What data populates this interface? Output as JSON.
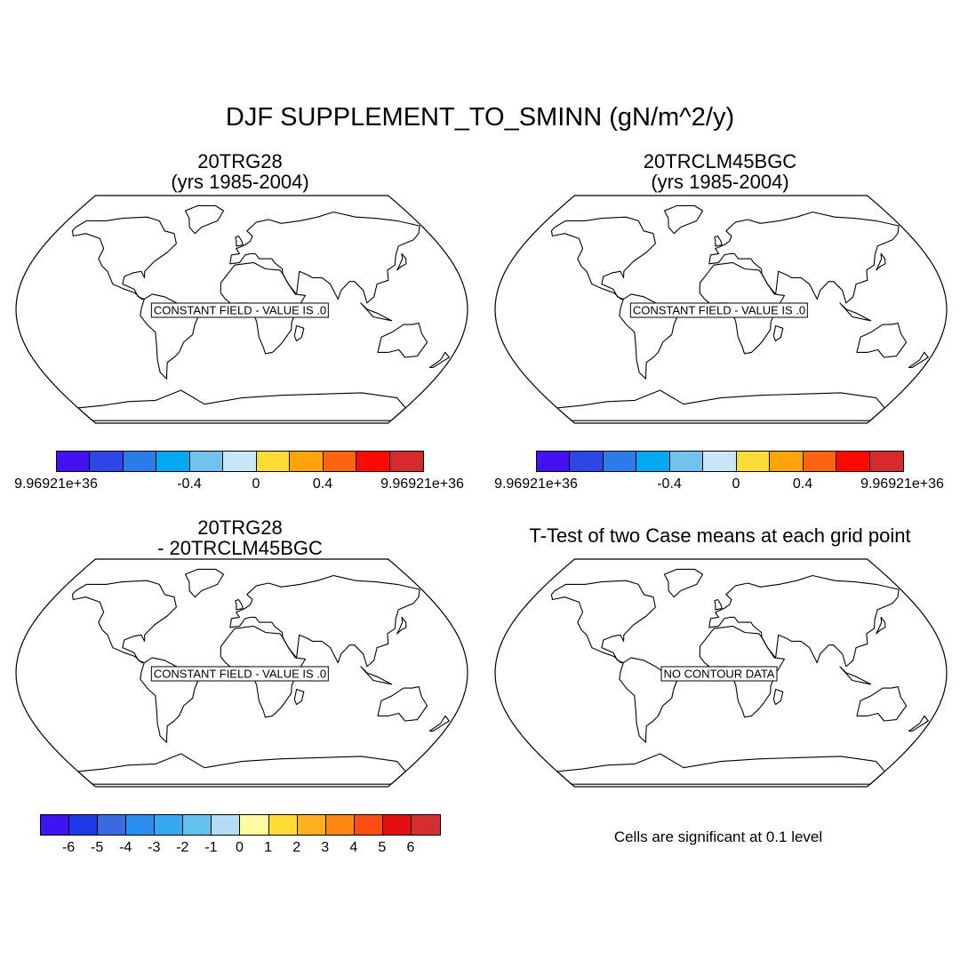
{
  "figure": {
    "title": "DJF SUPPLEMENT_TO_SMINN (gN/m^2/y)"
  },
  "panels": [
    {
      "id": "p1",
      "title_line1": "20TRG28",
      "title_line2": "(yrs 1985-2004)",
      "center_label": "CONSTANT FIELD - VALUE IS .0"
    },
    {
      "id": "p2",
      "title_line1": "20TRCLM45BGC",
      "title_line2": "(yrs 1985-2004)",
      "center_label": "CONSTANT FIELD - VALUE IS .0"
    },
    {
      "id": "p3",
      "title_line1": "20TRG28",
      "title_line2": "- 20TRCLM45BGC",
      "center_label": "CONSTANT FIELD - VALUE IS .0"
    },
    {
      "id": "p4",
      "title_line1": "T-Test of two Case means at each grid point",
      "title_line2": "",
      "center_label": "NO CONTOUR DATA"
    }
  ],
  "colorbars": {
    "case": {
      "colors": [
        "#4412f0",
        "#2d46e6",
        "#2b7be8",
        "#06a8f2",
        "#73c2ec",
        "#c8e6f8",
        "#f9dd34",
        "#fca40a",
        "#fc6410",
        "#fb0a00",
        "#d52a2a"
      ],
      "labels": [
        "9.96921e+36",
        "-0.4",
        "0",
        "0.4",
        "9.96921e+36"
      ]
    },
    "diff": {
      "colors": [
        "#3e14f2",
        "#1e3ae8",
        "#3a6ae2",
        "#2c8df0",
        "#34a9f2",
        "#63c3ef",
        "#b2ddf5",
        "#fdfaa0",
        "#fedd34",
        "#fdb01e",
        "#fc8810",
        "#fb4d10",
        "#e41010",
        "#d62e2e"
      ],
      "labels": [
        "-6",
        "-5",
        "-4",
        "-3",
        "-2",
        "-1",
        "0",
        "1",
        "2",
        "3",
        "4",
        "5",
        "6"
      ]
    }
  },
  "significance_note": "Cells are significant at 0.1 level"
}
